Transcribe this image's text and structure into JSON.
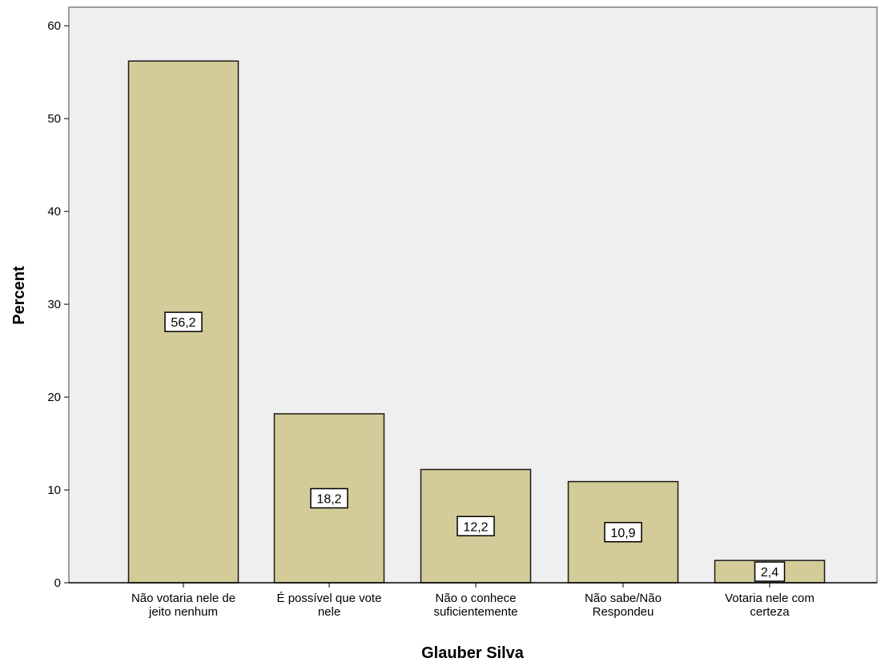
{
  "chart_data": {
    "type": "bar",
    "title": "",
    "xlabel": "Glauber Silva",
    "ylabel": "Percent",
    "categories": [
      [
        "Não votaria nele de",
        "jeito nenhum"
      ],
      [
        "É possível que vote",
        "nele"
      ],
      [
        "Não o conhece",
        "suficientemente"
      ],
      [
        "Não sabe/Não",
        "Respondeu"
      ],
      [
        "Votaria nele com",
        "certeza"
      ]
    ],
    "values": [
      56.2,
      18.2,
      12.2,
      10.9,
      2.4
    ],
    "data_labels": [
      "56,2",
      "18,2",
      "12,2",
      "10,9",
      "2,4"
    ],
    "ylim": [
      0,
      62
    ],
    "yticks": [
      0,
      10,
      20,
      30,
      40,
      50,
      60
    ],
    "grid": false,
    "colors": {
      "bar_fill": "#d3cc98",
      "bar_stroke": "#1a1a1a",
      "plot_background": "#efefef",
      "label_box": "#ffffff"
    }
  }
}
